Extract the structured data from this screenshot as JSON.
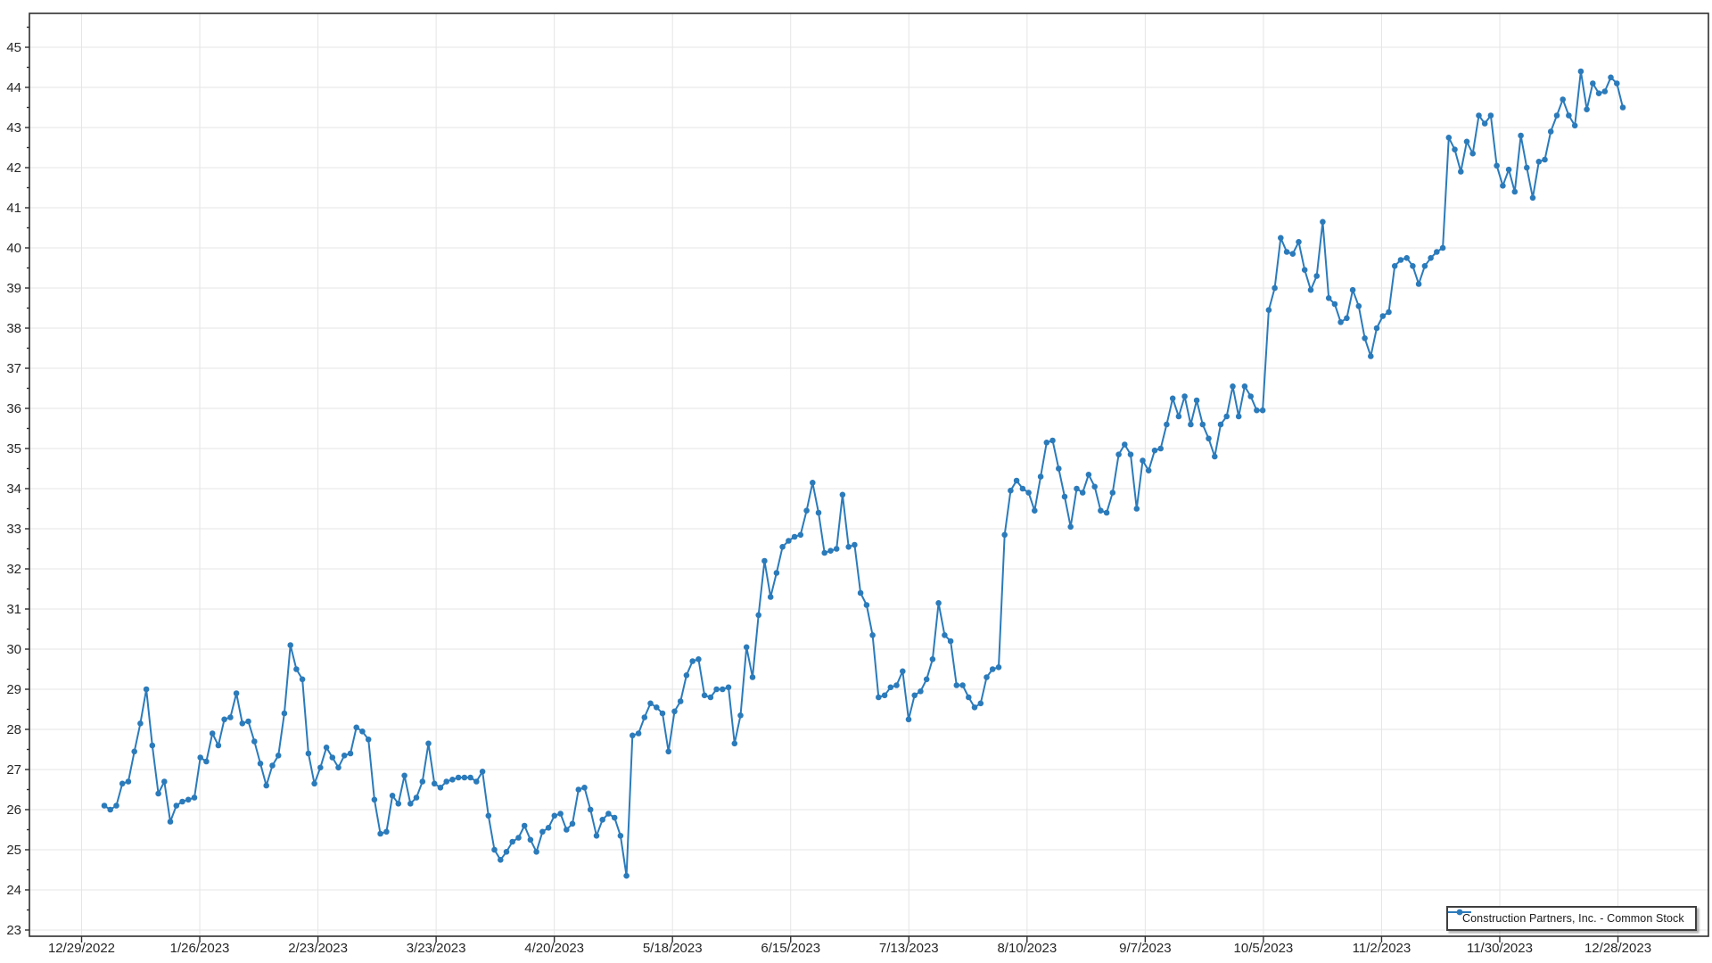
{
  "chart_data": {
    "type": "line",
    "title": "",
    "xlabel": "",
    "ylabel": "",
    "grid": true,
    "legend_position": "bottom-right",
    "marker": "circle",
    "ylim": [
      22.85,
      45.85
    ],
    "y_tick_step": 1,
    "y_ticks": [
      23,
      24,
      25,
      26,
      27,
      28,
      29,
      30,
      31,
      32,
      33,
      34,
      35,
      36,
      37,
      38,
      39,
      40,
      41,
      42,
      43,
      44,
      45
    ],
    "x_tick_labels": [
      "12/29/2022",
      "1/26/2023",
      "2/23/2023",
      "3/23/2023",
      "4/20/2023",
      "5/18/2023",
      "6/15/2023",
      "7/13/2023",
      "8/10/2023",
      "9/7/2023",
      "10/5/2023",
      "11/2/2023",
      "11/30/2023",
      "12/28/2023"
    ],
    "colors": {
      "series": "#2B7BBB",
      "grid": "#E5E5E5",
      "axis": "#2F2F2F",
      "labels": "#262626",
      "background": "#FFFFFF",
      "legend_border": "#3F3F3F"
    },
    "series": [
      {
        "name": "Construction Partners, Inc. - Common Stock",
        "values": [
          26.1,
          26.0,
          26.1,
          26.65,
          26.7,
          27.45,
          28.15,
          29.0,
          27.6,
          26.4,
          26.7,
          25.7,
          26.1,
          26.2,
          26.25,
          26.3,
          27.3,
          27.2,
          27.9,
          27.6,
          28.25,
          28.3,
          28.9,
          28.15,
          28.2,
          27.7,
          27.15,
          26.6,
          27.1,
          27.35,
          28.4,
          30.1,
          29.5,
          29.25,
          27.4,
          26.65,
          27.05,
          27.55,
          27.3,
          27.05,
          27.35,
          27.4,
          28.05,
          27.95,
          27.75,
          26.25,
          25.4,
          25.45,
          26.35,
          26.15,
          26.85,
          26.15,
          26.3,
          26.7,
          27.65,
          26.65,
          26.55,
          26.7,
          26.75,
          26.8,
          26.8,
          26.8,
          26.7,
          26.95,
          25.85,
          25.0,
          24.75,
          24.95,
          25.2,
          25.3,
          25.6,
          25.25,
          24.95,
          25.45,
          25.55,
          25.85,
          25.9,
          25.5,
          25.65,
          26.5,
          26.55,
          26.0,
          25.35,
          25.75,
          25.9,
          25.8,
          25.35,
          24.35,
          27.85,
          27.9,
          28.3,
          28.65,
          28.55,
          28.4,
          27.45,
          28.45,
          28.7,
          29.35,
          29.7,
          29.75,
          28.85,
          28.8,
          29.0,
          29.0,
          29.05,
          27.65,
          28.35,
          30.05,
          29.3,
          30.85,
          32.2,
          31.3,
          31.9,
          32.55,
          32.7,
          32.8,
          32.85,
          33.45,
          34.15,
          33.4,
          32.4,
          32.45,
          32.5,
          33.85,
          32.55,
          32.6,
          31.4,
          31.1,
          30.35,
          28.8,
          28.85,
          29.05,
          29.1,
          29.45,
          28.25,
          28.85,
          28.95,
          29.25,
          29.75,
          31.15,
          30.35,
          30.2,
          29.1,
          29.1,
          28.8,
          28.55,
          28.65,
          29.3,
          29.5,
          29.55,
          32.85,
          33.95,
          34.2,
          34.0,
          33.9,
          33.45,
          34.3,
          35.15,
          35.2,
          34.5,
          33.8,
          33.05,
          34.0,
          33.9,
          34.35,
          34.05,
          33.45,
          33.4,
          33.9,
          34.85,
          35.1,
          34.85,
          33.5,
          34.7,
          34.45,
          34.95,
          35.0,
          35.6,
          36.25,
          35.8,
          36.3,
          35.6,
          36.2,
          35.6,
          35.25,
          34.8,
          35.6,
          35.8,
          36.55,
          35.8,
          36.55,
          36.3,
          35.95,
          35.95,
          38.45,
          39.0,
          40.25,
          39.9,
          39.85,
          40.15,
          39.45,
          38.95,
          39.3,
          40.65,
          38.75,
          38.6,
          38.15,
          38.25,
          38.95,
          38.55,
          37.75,
          37.3,
          38.0,
          38.3,
          38.4,
          39.55,
          39.7,
          39.75,
          39.55,
          39.1,
          39.55,
          39.75,
          39.9,
          40.0,
          42.75,
          42.45,
          41.9,
          42.65,
          42.35,
          43.3,
          43.1,
          43.3,
          42.05,
          41.55,
          41.95,
          41.4,
          42.8,
          42.0,
          41.25,
          42.15,
          42.2,
          42.9,
          43.3,
          43.7,
          43.3,
          43.05,
          44.4,
          43.45,
          44.1,
          43.85,
          43.9,
          44.25,
          44.1,
          43.5
        ]
      }
    ]
  },
  "legend": {
    "label": "Construction Partners, Inc. - Common Stock"
  }
}
